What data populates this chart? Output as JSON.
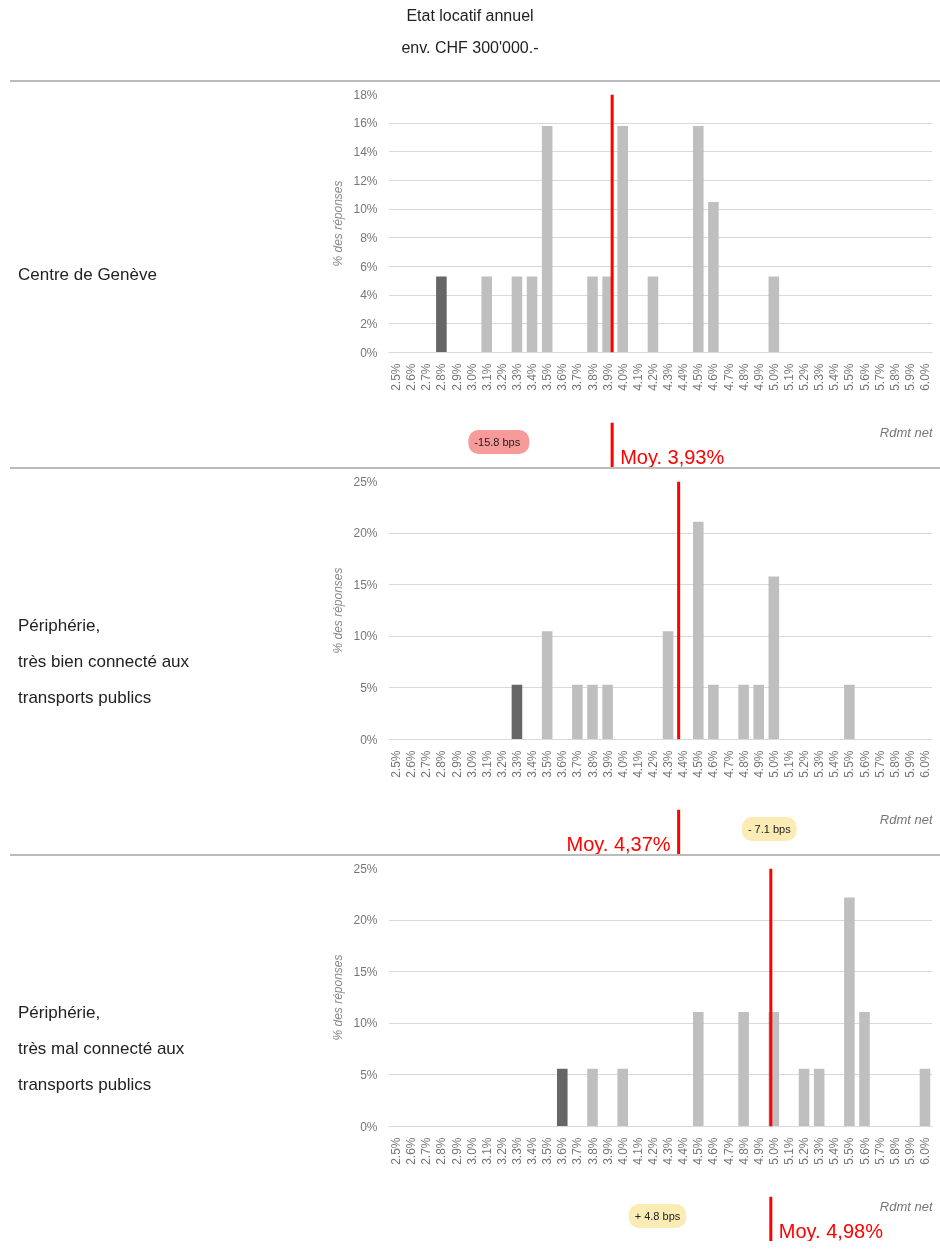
{
  "chart_data": [
    {
      "type": "bar",
      "title": "Etat locatif annuel\nenv. CHF 300'000.-",
      "xlabel": "Rdmt net",
      "ylabel": "% des réponses",
      "grid": "y",
      "annotations": [
        "Centre de Genève",
        "-15.8  bps"
      ],
      "x": [
        2.5,
        2.6,
        2.7,
        2.8,
        2.9,
        3.0,
        3.1,
        3.2,
        3.3,
        3.4,
        3.5,
        3.6,
        3.7,
        3.8,
        3.9,
        4.0,
        4.1,
        4.2,
        4.3,
        4.4,
        4.5,
        4.6,
        4.7,
        4.8,
        4.9,
        5.0,
        5.1,
        5.2,
        5.3,
        5.4,
        5.5,
        5.6,
        5.7,
        5.8,
        5.9,
        6.0
      ],
      "values": [
        0,
        0,
        0,
        5.3,
        0,
        0,
        5.3,
        0,
        5.3,
        5.3,
        15.8,
        0,
        0,
        5.3,
        5.3,
        15.8,
        0,
        5.3,
        0,
        0,
        15.8,
        10.5,
        0,
        0,
        0,
        5.3,
        0,
        0,
        0,
        0,
        0,
        0,
        0,
        0,
        0,
        0
      ],
      "colors": [
        "#bfbfbf",
        "#bfbfbf",
        "#bfbfbf",
        "#666666",
        "#bfbfbf",
        "#bfbfbf",
        "#bfbfbf",
        "#bfbfbf",
        "#bfbfbf",
        "#bfbfbf",
        "#bfbfbf",
        "#bfbfbf",
        "#bfbfbf",
        "#bfbfbf",
        "#bfbfbf",
        "#bfbfbf",
        "#bfbfbf",
        "#bfbfbf",
        "#bfbfbf",
        "#bfbfbf",
        "#bfbfbf",
        "#bfbfbf",
        "#bfbfbf",
        "#bfbfbf",
        "#bfbfbf",
        "#bfbfbf",
        "#bfbfbf",
        "#bfbfbf",
        "#bfbfbf",
        "#bfbfbf",
        "#bfbfbf",
        "#bfbfbf",
        "#bfbfbf",
        "#bfbfbf",
        "#bfbfbf",
        "#bfbfbf"
      ],
      "xlim": [
        2.45,
        6.05
      ],
      "ylim": [
        0,
        18
      ],
      "xticks": [
        {
          "value": 2.5,
          "label": "2.5%"
        },
        {
          "value": 2.6,
          "label": "2.6%"
        },
        {
          "value": 2.7,
          "label": "2.7%"
        },
        {
          "value": 2.8,
          "label": "2.8%"
        },
        {
          "value": 2.9,
          "label": "2.9%"
        },
        {
          "value": 3.0,
          "label": "3.0%"
        },
        {
          "value": 3.1,
          "label": "3.1%"
        },
        {
          "value": 3.2,
          "label": "3.2%"
        },
        {
          "value": 3.3,
          "label": "3.3%"
        },
        {
          "value": 3.4,
          "label": "3.4%"
        },
        {
          "value": 3.5,
          "label": "3.5%"
        },
        {
          "value": 3.6,
          "label": "3.6%"
        },
        {
          "value": 3.7,
          "label": "3.7%"
        },
        {
          "value": 3.8,
          "label": "3.8%"
        },
        {
          "value": 3.9,
          "label": "3.9%"
        },
        {
          "value": 4.0,
          "label": "4.0%"
        },
        {
          "value": 4.1,
          "label": "4.1%"
        },
        {
          "value": 4.2,
          "label": "4.2%"
        },
        {
          "value": 4.3,
          "label": "4.3%"
        },
        {
          "value": 4.4,
          "label": "4.4%"
        },
        {
          "value": 4.5,
          "label": "4.5%"
        },
        {
          "value": 4.6,
          "label": "4.6%"
        },
        {
          "value": 4.7,
          "label": "4.7%"
        },
        {
          "value": 4.8,
          "label": "4.8%"
        },
        {
          "value": 4.9,
          "label": "4.9%"
        },
        {
          "value": 5.0,
          "label": "5.0%"
        },
        {
          "value": 5.1,
          "label": "5.1%"
        },
        {
          "value": 5.2,
          "label": "5.2%"
        },
        {
          "value": 5.3,
          "label": "5.3%"
        },
        {
          "value": 5.4,
          "label": "5.4%"
        },
        {
          "value": 5.5,
          "label": "5.5%"
        },
        {
          "value": 5.6,
          "label": "5.6%"
        },
        {
          "value": 5.7,
          "label": "5.7%"
        },
        {
          "value": 5.8,
          "label": "5.8%"
        },
        {
          "value": 5.9,
          "label": "5.9%"
        },
        {
          "value": 6.0,
          "label": "6.0%"
        }
      ],
      "yticks": [
        {
          "value": 0,
          "label": "0%"
        },
        {
          "value": 2,
          "label": "2%"
        },
        {
          "value": 4,
          "label": "4%"
        },
        {
          "value": 6,
          "label": "6%"
        },
        {
          "value": 8,
          "label": "8%"
        },
        {
          "value": 10,
          "label": "10%"
        },
        {
          "value": 12,
          "label": "12%"
        },
        {
          "value": 14,
          "label": "14%"
        },
        {
          "value": 16,
          "label": "16%"
        },
        {
          "value": 18,
          "label": "18%"
        }
      ],
      "ref_lines": [
        {
          "axis": "x",
          "value": 3.93,
          "label": "Moy. 3,93%",
          "color": "#ff0000"
        }
      ]
    },
    {
      "type": "bar",
      "xlabel": "Rdmt net",
      "ylabel": "% des réponses",
      "grid": "y",
      "annotations": [
        "Périphérie,\ntrès bien connecté aux\ntransports publics",
        "- 7.1 bps"
      ],
      "x": [
        2.5,
        2.6,
        2.7,
        2.8,
        2.9,
        3.0,
        3.1,
        3.2,
        3.3,
        3.4,
        3.5,
        3.6,
        3.7,
        3.8,
        3.9,
        4.0,
        4.1,
        4.2,
        4.3,
        4.4,
        4.5,
        4.6,
        4.7,
        4.8,
        4.9,
        5.0,
        5.1,
        5.2,
        5.3,
        5.4,
        5.5,
        5.6,
        5.7,
        5.8,
        5.9,
        6.0
      ],
      "values": [
        0,
        0,
        0,
        0,
        0,
        0,
        0,
        0,
        5.3,
        0,
        10.5,
        0,
        5.3,
        5.3,
        5.3,
        0,
        0,
        0,
        10.5,
        0,
        21.1,
        5.3,
        0,
        5.3,
        5.3,
        15.8,
        0,
        0,
        0,
        0,
        5.3,
        0,
        0,
        0,
        0,
        0
      ],
      "colors": [
        "#bfbfbf",
        "#bfbfbf",
        "#bfbfbf",
        "#bfbfbf",
        "#bfbfbf",
        "#bfbfbf",
        "#bfbfbf",
        "#bfbfbf",
        "#666666",
        "#bfbfbf",
        "#bfbfbf",
        "#bfbfbf",
        "#bfbfbf",
        "#bfbfbf",
        "#bfbfbf",
        "#bfbfbf",
        "#bfbfbf",
        "#bfbfbf",
        "#bfbfbf",
        "#bfbfbf",
        "#bfbfbf",
        "#bfbfbf",
        "#bfbfbf",
        "#bfbfbf",
        "#bfbfbf",
        "#bfbfbf",
        "#bfbfbf",
        "#bfbfbf",
        "#bfbfbf",
        "#bfbfbf",
        "#bfbfbf",
        "#bfbfbf",
        "#bfbfbf",
        "#bfbfbf",
        "#bfbfbf",
        "#bfbfbf"
      ],
      "xlim": [
        2.45,
        6.05
      ],
      "ylim": [
        0,
        25
      ],
      "xticks": [
        {
          "value": 2.5,
          "label": "2.5%"
        },
        {
          "value": 2.6,
          "label": "2.6%"
        },
        {
          "value": 2.7,
          "label": "2.7%"
        },
        {
          "value": 2.8,
          "label": "2.8%"
        },
        {
          "value": 2.9,
          "label": "2.9%"
        },
        {
          "value": 3.0,
          "label": "3.0%"
        },
        {
          "value": 3.1,
          "label": "3.1%"
        },
        {
          "value": 3.2,
          "label": "3.2%"
        },
        {
          "value": 3.3,
          "label": "3.3%"
        },
        {
          "value": 3.4,
          "label": "3.4%"
        },
        {
          "value": 3.5,
          "label": "3.5%"
        },
        {
          "value": 3.6,
          "label": "3.6%"
        },
        {
          "value": 3.7,
          "label": "3.7%"
        },
        {
          "value": 3.8,
          "label": "3.8%"
        },
        {
          "value": 3.9,
          "label": "3.9%"
        },
        {
          "value": 4.0,
          "label": "4.0%"
        },
        {
          "value": 4.1,
          "label": "4.1%"
        },
        {
          "value": 4.2,
          "label": "4.2%"
        },
        {
          "value": 4.3,
          "label": "4.3%"
        },
        {
          "value": 4.4,
          "label": "4.4%"
        },
        {
          "value": 4.5,
          "label": "4.5%"
        },
        {
          "value": 4.6,
          "label": "4.6%"
        },
        {
          "value": 4.7,
          "label": "4.7%"
        },
        {
          "value": 4.8,
          "label": "4.8%"
        },
        {
          "value": 4.9,
          "label": "4.9%"
        },
        {
          "value": 5.0,
          "label": "5.0%"
        },
        {
          "value": 5.1,
          "label": "5.1%"
        },
        {
          "value": 5.2,
          "label": "5.2%"
        },
        {
          "value": 5.3,
          "label": "5.3%"
        },
        {
          "value": 5.4,
          "label": "5.4%"
        },
        {
          "value": 5.5,
          "label": "5.5%"
        },
        {
          "value": 5.6,
          "label": "5.6%"
        },
        {
          "value": 5.7,
          "label": "5.7%"
        },
        {
          "value": 5.8,
          "label": "5.8%"
        },
        {
          "value": 5.9,
          "label": "5.9%"
        },
        {
          "value": 6.0,
          "label": "6.0%"
        }
      ],
      "yticks": [
        {
          "value": 0,
          "label": "0%"
        },
        {
          "value": 5,
          "label": "5%"
        },
        {
          "value": 10,
          "label": "10%"
        },
        {
          "value": 15,
          "label": "15%"
        },
        {
          "value": 20,
          "label": "20%"
        },
        {
          "value": 25,
          "label": "25%"
        }
      ],
      "ref_lines": [
        {
          "axis": "x",
          "value": 4.37,
          "label": "Moy. 4,37%",
          "color": "#ff0000"
        }
      ]
    },
    {
      "type": "bar",
      "xlabel": "Rdmt net",
      "ylabel": "% des réponses",
      "grid": "y",
      "annotations": [
        "Périphérie,\ntrès mal connecté aux\ntransports publics",
        "+ 4.8 bps"
      ],
      "x": [
        2.5,
        2.6,
        2.7,
        2.8,
        2.9,
        3.0,
        3.1,
        3.2,
        3.3,
        3.4,
        3.5,
        3.6,
        3.7,
        3.8,
        3.9,
        4.0,
        4.1,
        4.2,
        4.3,
        4.4,
        4.5,
        4.6,
        4.7,
        4.8,
        4.9,
        5.0,
        5.1,
        5.2,
        5.3,
        5.4,
        5.5,
        5.6,
        5.7,
        5.8,
        5.9,
        6.0
      ],
      "values": [
        0,
        0,
        0,
        0,
        0,
        0,
        0,
        0,
        0,
        0,
        0,
        5.6,
        0,
        5.6,
        0,
        5.6,
        0,
        0,
        0,
        0,
        11.1,
        0,
        0,
        11.1,
        0,
        11.1,
        0,
        5.6,
        5.6,
        0,
        22.2,
        11.1,
        0,
        0,
        0,
        5.6
      ],
      "colors": [
        "#bfbfbf",
        "#bfbfbf",
        "#bfbfbf",
        "#bfbfbf",
        "#bfbfbf",
        "#bfbfbf",
        "#bfbfbf",
        "#bfbfbf",
        "#bfbfbf",
        "#bfbfbf",
        "#bfbfbf",
        "#666666",
        "#bfbfbf",
        "#bfbfbf",
        "#bfbfbf",
        "#bfbfbf",
        "#bfbfbf",
        "#bfbfbf",
        "#bfbfbf",
        "#bfbfbf",
        "#bfbfbf",
        "#bfbfbf",
        "#bfbfbf",
        "#bfbfbf",
        "#bfbfbf",
        "#bfbfbf",
        "#bfbfbf",
        "#bfbfbf",
        "#bfbfbf",
        "#bfbfbf",
        "#bfbfbf",
        "#bfbfbf",
        "#bfbfbf",
        "#bfbfbf",
        "#bfbfbf",
        "#bfbfbf"
      ],
      "xlim": [
        2.45,
        6.05
      ],
      "ylim": [
        0,
        25
      ],
      "xticks": [
        {
          "value": 2.5,
          "label": "2.5%"
        },
        {
          "value": 2.6,
          "label": "2.6%"
        },
        {
          "value": 2.7,
          "label": "2.7%"
        },
        {
          "value": 2.8,
          "label": "2.8%"
        },
        {
          "value": 2.9,
          "label": "2.9%"
        },
        {
          "value": 3.0,
          "label": "3.0%"
        },
        {
          "value": 3.1,
          "label": "3.1%"
        },
        {
          "value": 3.2,
          "label": "3.2%"
        },
        {
          "value": 3.3,
          "label": "3.3%"
        },
        {
          "value": 3.4,
          "label": "3.4%"
        },
        {
          "value": 3.5,
          "label": "3.5%"
        },
        {
          "value": 3.6,
          "label": "3.6%"
        },
        {
          "value": 3.7,
          "label": "3.7%"
        },
        {
          "value": 3.8,
          "label": "3.8%"
        },
        {
          "value": 3.9,
          "label": "3.9%"
        },
        {
          "value": 4.0,
          "label": "4.0%"
        },
        {
          "value": 4.1,
          "label": "4.1%"
        },
        {
          "value": 4.2,
          "label": "4.2%"
        },
        {
          "value": 4.3,
          "label": "4.3%"
        },
        {
          "value": 4.4,
          "label": "4.4%"
        },
        {
          "value": 4.5,
          "label": "4.5%"
        },
        {
          "value": 4.6,
          "label": "4.6%"
        },
        {
          "value": 4.7,
          "label": "4.7%"
        },
        {
          "value": 4.8,
          "label": "4.8%"
        },
        {
          "value": 4.9,
          "label": "4.9%"
        },
        {
          "value": 5.0,
          "label": "5.0%"
        },
        {
          "value": 5.1,
          "label": "5.1%"
        },
        {
          "value": 5.2,
          "label": "5.2%"
        },
        {
          "value": 5.3,
          "label": "5.3%"
        },
        {
          "value": 5.4,
          "label": "5.4%"
        },
        {
          "value": 5.5,
          "label": "5.5%"
        },
        {
          "value": 5.6,
          "label": "5.6%"
        },
        {
          "value": 5.7,
          "label": "5.7%"
        },
        {
          "value": 5.8,
          "label": "5.8%"
        },
        {
          "value": 5.9,
          "label": "5.9%"
        },
        {
          "value": 6.0,
          "label": "6.0%"
        }
      ],
      "yticks": [
        {
          "value": 0,
          "label": "0%"
        },
        {
          "value": 5,
          "label": "5%"
        },
        {
          "value": 10,
          "label": "10%"
        },
        {
          "value": 15,
          "label": "15%"
        },
        {
          "value": 20,
          "label": "20%"
        },
        {
          "value": 25,
          "label": "25%"
        }
      ],
      "ref_lines": [
        {
          "axis": "x",
          "value": 4.98,
          "label": "Moy. 4,98%",
          "color": "#ff0000"
        }
      ]
    }
  ]
}
